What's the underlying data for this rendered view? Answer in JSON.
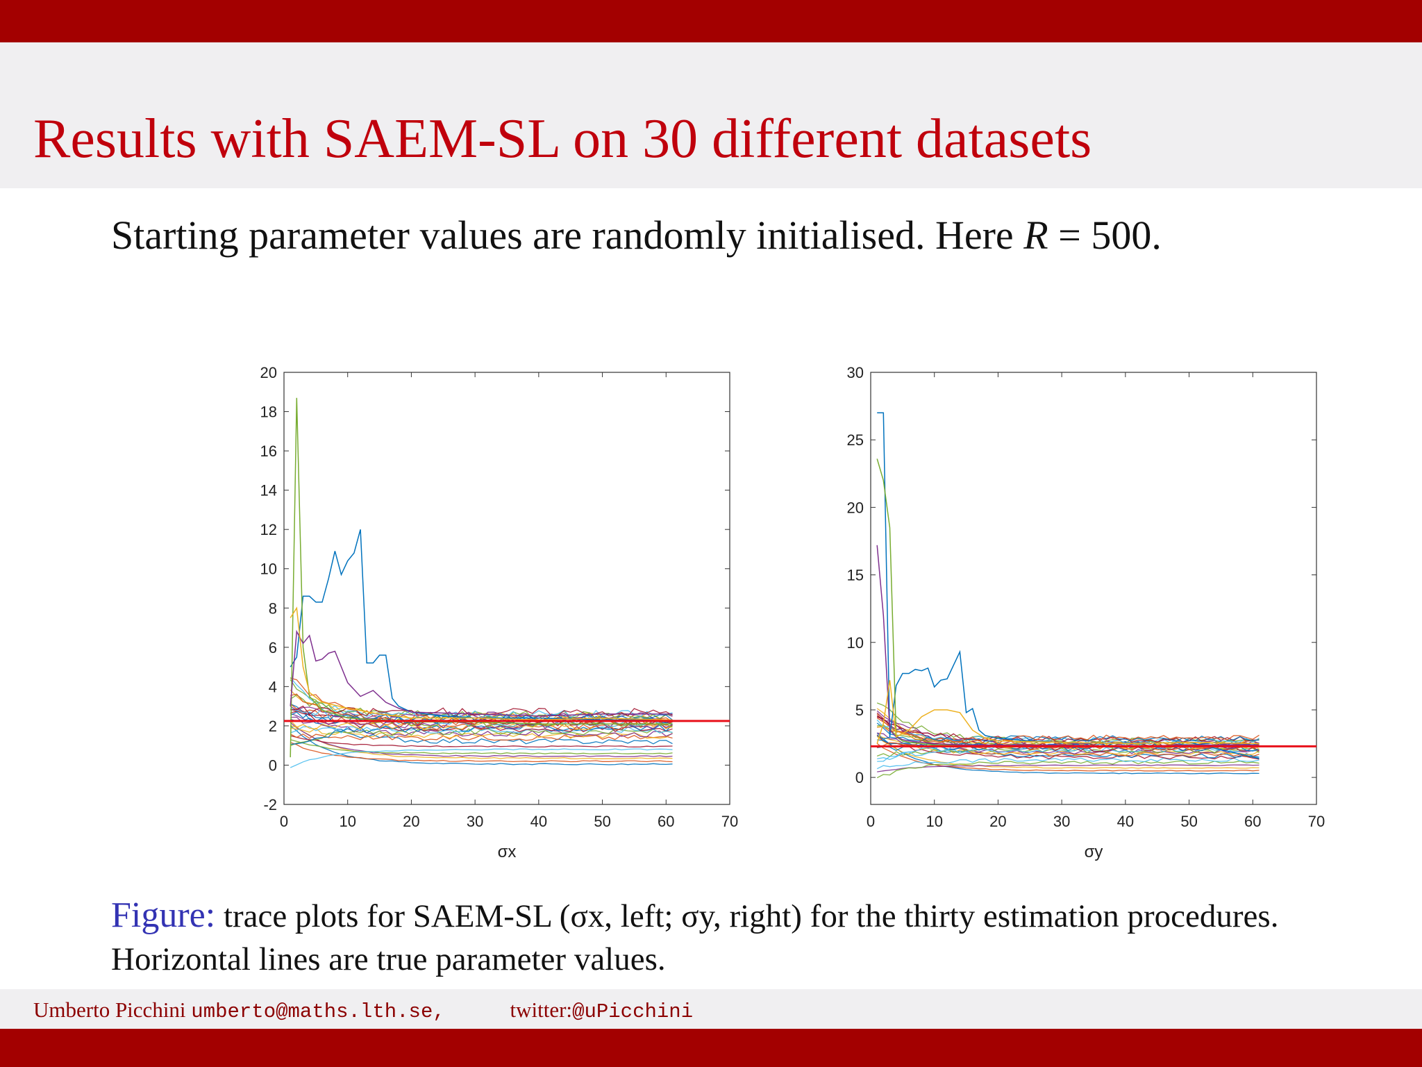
{
  "slide": {
    "title": "Results with SAEM-SL on 30 different datasets",
    "intro_text": "Starting parameter values are randomly initialised. Here ",
    "intro_var": "R",
    "intro_eq": " = 500."
  },
  "caption": {
    "label": "Figure:",
    "text": " trace plots for SAEM-SL (σx, left; σy, right) for the thirty estimation procedures. Horizontal lines are true parameter values."
  },
  "footer": {
    "author": "Umberto Picchini",
    "email": "umberto@maths.lth.se,",
    "twitter_label": "twitter:",
    "twitter_handle": "@uPicchini"
  },
  "colors": {
    "accent": "#a30000",
    "title": "#c0000c",
    "figure_label": "#3333b3",
    "true_value_line": "#e8101a",
    "palette": [
      "#0072bd",
      "#d95319",
      "#edb120",
      "#7e2f8e",
      "#77ac30",
      "#4dbeee",
      "#a2142f"
    ]
  },
  "chart_data": [
    {
      "type": "line",
      "xlabel": "σx",
      "xlim": [
        0,
        70
      ],
      "ylim": [
        -2,
        20
      ],
      "xticks": [
        0,
        10,
        20,
        30,
        40,
        50,
        60,
        70
      ],
      "yticks": [
        -2,
        0,
        2,
        4,
        6,
        8,
        10,
        12,
        14,
        16,
        18,
        20
      ],
      "true_value": 2.25,
      "n_traces": 30,
      "highlight_traces": [
        {
          "x": [
            1,
            2,
            3,
            4,
            5,
            6,
            7,
            8,
            9,
            10,
            11,
            12,
            13,
            14,
            15,
            16,
            17,
            18,
            20,
            25,
            30,
            40,
            50,
            61
          ],
          "y": [
            5.0,
            5.5,
            8.6,
            8.6,
            8.3,
            8.3,
            9.5,
            10.9,
            9.7,
            10.4,
            10.8,
            12.0,
            5.2,
            5.2,
            5.6,
            5.6,
            3.4,
            3.0,
            2.7,
            2.5,
            2.4,
            2.4,
            2.3,
            2.3
          ]
        },
        {
          "x": [
            1,
            2,
            3,
            4,
            6,
            8,
            10,
            15,
            20,
            30,
            40,
            50,
            61
          ],
          "y": [
            0.4,
            18.7,
            6.0,
            3.5,
            2.8,
            2.6,
            2.4,
            2.3,
            2.2,
            2.2,
            2.1,
            2.1,
            2.1
          ]
        },
        {
          "x": [
            1,
            2,
            3,
            4,
            5,
            6,
            7,
            8,
            10,
            12,
            14,
            16,
            18,
            20,
            30,
            40,
            50,
            61
          ],
          "y": [
            3.0,
            6.8,
            6.2,
            6.6,
            5.3,
            5.4,
            5.7,
            5.8,
            4.2,
            3.5,
            3.8,
            3.2,
            2.9,
            2.7,
            2.6,
            2.5,
            2.6,
            2.6
          ]
        },
        {
          "x": [
            1,
            2,
            3,
            4,
            6,
            10,
            15,
            20,
            30,
            40,
            50,
            61
          ],
          "y": [
            7.5,
            8.0,
            5.0,
            3.7,
            3.2,
            2.9,
            2.6,
            2.4,
            2.4,
            2.3,
            2.4,
            2.3
          ]
        }
      ],
      "trace_final_values": [
        0.05,
        0.2,
        0.35,
        0.45,
        0.6,
        0.8,
        0.95,
        1.2,
        1.4,
        1.5,
        1.6,
        1.7,
        1.8,
        1.85,
        1.9,
        1.95,
        2.0,
        2.05,
        2.1,
        2.15,
        2.2,
        2.3,
        2.4,
        2.45,
        2.5,
        2.55,
        2.6,
        2.7,
        2.4,
        2.2
      ]
    },
    {
      "type": "line",
      "xlabel": "σy",
      "xlim": [
        0,
        70
      ],
      "ylim": [
        -2,
        30
      ],
      "xticks": [
        0,
        10,
        20,
        30,
        40,
        50,
        60,
        70
      ],
      "yticks": [
        0,
        5,
        10,
        15,
        20,
        25,
        30
      ],
      "true_value": 2.3,
      "n_traces": 30,
      "highlight_traces": [
        {
          "x": [
            1,
            2,
            3,
            4,
            5,
            6,
            7,
            8,
            9,
            10,
            11,
            12,
            13,
            14,
            15,
            16,
            17,
            18,
            20,
            25,
            30,
            40,
            50,
            61
          ],
          "y": [
            27.0,
            27.0,
            3.0,
            6.8,
            7.7,
            7.7,
            8.0,
            7.9,
            8.1,
            6.7,
            7.2,
            7.3,
            8.3,
            9.3,
            4.8,
            5.1,
            3.5,
            3.1,
            2.9,
            2.7,
            2.6,
            2.5,
            2.6,
            1.4
          ]
        },
        {
          "x": [
            1,
            2,
            3,
            4,
            5,
            6,
            8,
            10,
            15,
            20,
            30,
            40,
            50,
            61
          ],
          "y": [
            23.6,
            22.0,
            18.5,
            3.0,
            2.7,
            2.6,
            2.5,
            2.4,
            2.4,
            2.3,
            2.3,
            2.3,
            2.3,
            2.3
          ]
        },
        {
          "x": [
            1,
            2,
            3,
            4,
            5,
            6,
            8,
            10,
            15,
            20,
            30,
            40,
            50,
            61
          ],
          "y": [
            17.2,
            12.0,
            3.5,
            3.0,
            2.8,
            2.7,
            2.6,
            2.5,
            2.4,
            2.4,
            2.4,
            2.3,
            2.4,
            2.4
          ]
        },
        {
          "x": [
            1,
            2,
            3,
            4,
            6,
            8,
            10,
            12,
            14,
            16,
            18,
            20,
            30,
            40,
            50,
            61
          ],
          "y": [
            2.5,
            4.0,
            7.2,
            3.0,
            3.5,
            4.5,
            5.0,
            5.0,
            4.8,
            3.5,
            2.9,
            2.7,
            2.6,
            2.5,
            2.6,
            2.5
          ]
        }
      ],
      "trace_final_values": [
        0.3,
        0.5,
        0.7,
        0.9,
        1.1,
        1.3,
        1.5,
        1.6,
        1.7,
        1.8,
        1.9,
        2.0,
        2.05,
        2.1,
        2.15,
        2.2,
        2.25,
        2.3,
        2.35,
        2.4,
        2.45,
        2.5,
        2.55,
        2.6,
        2.65,
        2.7,
        2.75,
        2.8,
        2.85,
        2.9
      ]
    }
  ]
}
